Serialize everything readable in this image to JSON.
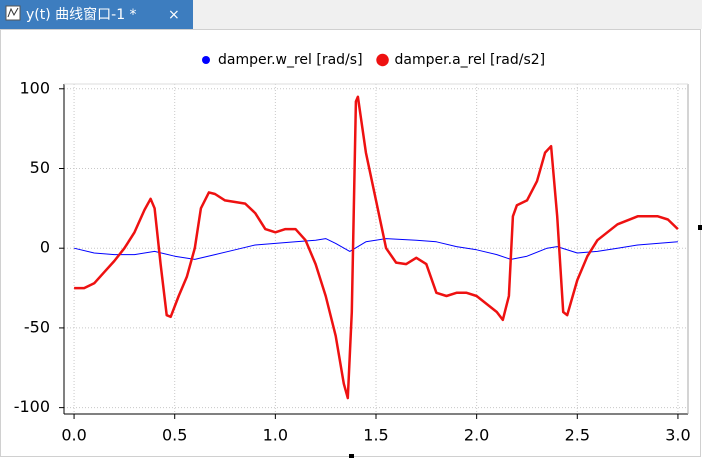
{
  "window": {
    "tab_title": "y(t) 曲线窗口-1 *"
  },
  "chart_data": {
    "type": "line",
    "xlim": [
      -0.05,
      3.05
    ],
    "ylim": [
      -104,
      103
    ],
    "xticks": [
      {
        "value": 0,
        "label": "0.0"
      },
      0.5,
      {
        "value": 1,
        "label": "1.0"
      },
      1.5,
      {
        "value": 2,
        "label": "2.0"
      },
      2.5,
      {
        "value": 3,
        "label": "3.0"
      }
    ],
    "yticks": [
      -100,
      -50,
      0,
      50,
      100
    ],
    "grid": true,
    "legend": "top",
    "series": [
      {
        "name": "damper.w_rel [rad/s]",
        "color": "#0000ff",
        "width": 1,
        "x": [
          0,
          0.1,
          0.2,
          0.3,
          0.4,
          0.5,
          0.6,
          0.7,
          0.8,
          0.9,
          1.0,
          1.1,
          1.2,
          1.25,
          1.3,
          1.37,
          1.45,
          1.55,
          1.7,
          1.8,
          1.9,
          2.0,
          2.1,
          2.17,
          2.25,
          2.35,
          2.4,
          2.5,
          2.6,
          2.7,
          2.8,
          2.9,
          3.0
        ],
        "values": [
          0,
          -3,
          -4,
          -4,
          -2,
          -5,
          -7,
          -4,
          -1,
          2,
          3,
          4,
          5,
          6,
          3,
          -2,
          4,
          6,
          5,
          4,
          1,
          -1,
          -4,
          -7,
          -5,
          0,
          1,
          -3,
          -2,
          0,
          2,
          3,
          4
        ]
      },
      {
        "name": "damper.a_rel [rad/s2]",
        "color": "#ee1111",
        "width": 2.5,
        "x": [
          0,
          0.05,
          0.1,
          0.15,
          0.2,
          0.25,
          0.3,
          0.35,
          0.38,
          0.4,
          0.43,
          0.46,
          0.48,
          0.52,
          0.56,
          0.6,
          0.63,
          0.67,
          0.7,
          0.75,
          0.8,
          0.85,
          0.9,
          0.95,
          1.0,
          1.05,
          1.1,
          1.15,
          1.2,
          1.25,
          1.3,
          1.34,
          1.36,
          1.38,
          1.4,
          1.41,
          1.45,
          1.5,
          1.55,
          1.6,
          1.65,
          1.7,
          1.75,
          1.8,
          1.85,
          1.9,
          1.95,
          2.0,
          2.05,
          2.1,
          2.13,
          2.16,
          2.18,
          2.2,
          2.25,
          2.3,
          2.34,
          2.37,
          2.4,
          2.43,
          2.45,
          2.5,
          2.55,
          2.6,
          2.7,
          2.8,
          2.9,
          2.95,
          3.0
        ],
        "values": [
          -25,
          -25,
          -22,
          -15,
          -8,
          0,
          10,
          24,
          31,
          25,
          -10,
          -42,
          -43,
          -30,
          -18,
          0,
          25,
          35,
          34,
          30,
          29,
          28,
          22,
          12,
          10,
          12,
          12,
          5,
          -10,
          -30,
          -55,
          -85,
          -94,
          -40,
          92,
          95,
          60,
          30,
          0,
          -9,
          -10,
          -6,
          -10,
          -28,
          -30,
          -28,
          -28,
          -30,
          -35,
          -40,
          -45,
          -30,
          20,
          27,
          30,
          42,
          60,
          64,
          20,
          -40,
          -42,
          -20,
          -5,
          5,
          15,
          20,
          20,
          18,
          12
        ]
      }
    ]
  }
}
